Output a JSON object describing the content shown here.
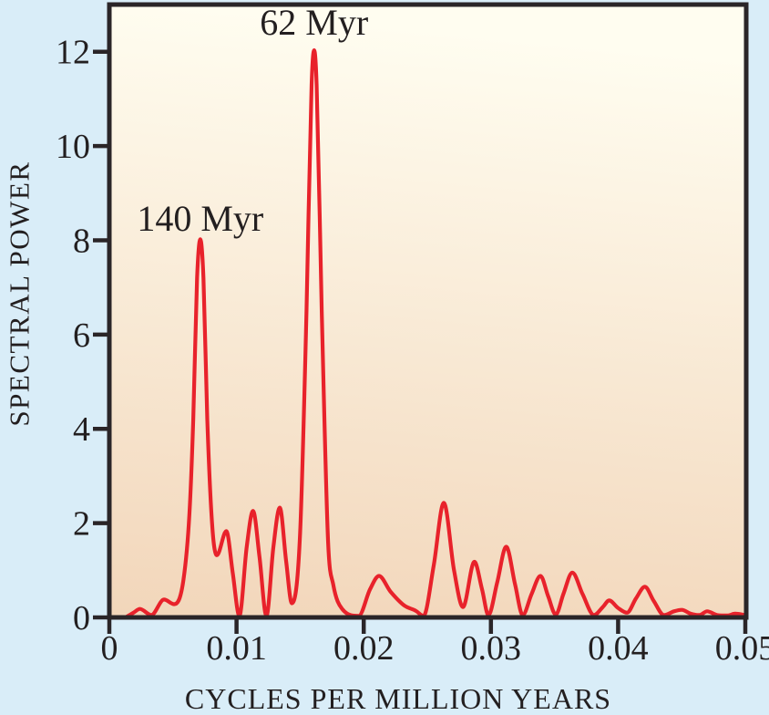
{
  "figure": {
    "background_color": "#d9edf8",
    "frame_color": "#2a2528",
    "text_color": "#231f20"
  },
  "chart_data": {
    "type": "line",
    "title": "",
    "xlabel": "CYCLES PER MILLION YEARS",
    "ylabel": "SPECTRAL POWER",
    "xlim": [
      0,
      0.05
    ],
    "ylim": [
      0,
      13
    ],
    "grid": false,
    "legend": "none",
    "line_color": "#e8222b",
    "line_width": 4.2,
    "plot_background_gradient": {
      "top": "#fffdf0",
      "bottom": "#f2d6ba"
    },
    "x_ticks": {
      "values": [
        0,
        0.01,
        0.02,
        0.03,
        0.04,
        0.05
      ],
      "labels": [
        "0",
        "0.01",
        "0.02",
        "0.03",
        "0.04",
        "0.05"
      ]
    },
    "y_ticks": {
      "values": [
        0,
        2,
        4,
        6,
        8,
        10,
        12
      ],
      "labels": [
        "0",
        "2",
        "4",
        "6",
        "8",
        "10",
        "12"
      ]
    },
    "annotations": [
      {
        "label": "62 Myr",
        "x": 0.0161,
        "y": 12.3
      },
      {
        "label": "140 Myr",
        "x": 0.00715,
        "y": 8.15
      }
    ],
    "series": [
      {
        "name": "spectral-power",
        "points": [
          [
            0.0014,
            0.02
          ],
          [
            0.0019,
            0.1
          ],
          [
            0.0024,
            0.18
          ],
          [
            0.0033,
            0.05
          ],
          [
            0.0043,
            0.38
          ],
          [
            0.0051,
            0.28
          ],
          [
            0.0058,
            0.75
          ],
          [
            0.0063,
            2.2
          ],
          [
            0.0066,
            4.2
          ],
          [
            0.0069,
            7.2
          ],
          [
            0.00715,
            8.02
          ],
          [
            0.0074,
            7.2
          ],
          [
            0.0077,
            4.2
          ],
          [
            0.0081,
            1.9
          ],
          [
            0.00845,
            1.32
          ],
          [
            0.0092,
            1.83
          ],
          [
            0.0097,
            0.95
          ],
          [
            0.01022,
            0.03
          ],
          [
            0.0108,
            1.5
          ],
          [
            0.0113,
            2.26
          ],
          [
            0.0118,
            1.3
          ],
          [
            0.01235,
            0.03
          ],
          [
            0.0129,
            1.5
          ],
          [
            0.0134,
            2.33
          ],
          [
            0.0139,
            1.2
          ],
          [
            0.01435,
            0.3
          ],
          [
            0.015,
            1.8
          ],
          [
            0.0155,
            6.5
          ],
          [
            0.0159,
            11.3
          ],
          [
            0.0161,
            12.03
          ],
          [
            0.0163,
            11.3
          ],
          [
            0.0167,
            6.5
          ],
          [
            0.0172,
            1.6
          ],
          [
            0.0176,
            0.7
          ],
          [
            0.0183,
            0.18
          ],
          [
            0.0196,
            0.03
          ],
          [
            0.0205,
            0.6
          ],
          [
            0.0212,
            0.88
          ],
          [
            0.0221,
            0.55
          ],
          [
            0.0232,
            0.25
          ],
          [
            0.0241,
            0.14
          ],
          [
            0.0247,
            0.03
          ],
          [
            0.0255,
            1.1
          ],
          [
            0.0263,
            2.43
          ],
          [
            0.0271,
            1.0
          ],
          [
            0.0278,
            0.22
          ],
          [
            0.0287,
            1.18
          ],
          [
            0.0293,
            0.6
          ],
          [
            0.0298,
            0.05
          ],
          [
            0.0305,
            0.75
          ],
          [
            0.0312,
            1.5
          ],
          [
            0.0319,
            0.7
          ],
          [
            0.0325,
            0.05
          ],
          [
            0.0332,
            0.5
          ],
          [
            0.0339,
            0.88
          ],
          [
            0.0345,
            0.45
          ],
          [
            0.0351,
            0.06
          ],
          [
            0.0357,
            0.5
          ],
          [
            0.0364,
            0.95
          ],
          [
            0.0372,
            0.5
          ],
          [
            0.0381,
            0.05
          ],
          [
            0.0388,
            0.22
          ],
          [
            0.0393,
            0.36
          ],
          [
            0.04,
            0.2
          ],
          [
            0.0407,
            0.1
          ],
          [
            0.0414,
            0.4
          ],
          [
            0.0421,
            0.65
          ],
          [
            0.0428,
            0.35
          ],
          [
            0.0436,
            0.05
          ],
          [
            0.0444,
            0.13
          ],
          [
            0.045,
            0.16
          ],
          [
            0.0457,
            0.08
          ],
          [
            0.0464,
            0.05
          ],
          [
            0.047,
            0.13
          ],
          [
            0.0478,
            0.05
          ],
          [
            0.0486,
            0.04
          ],
          [
            0.0492,
            0.08
          ],
          [
            0.05,
            0.05
          ]
        ]
      }
    ]
  }
}
